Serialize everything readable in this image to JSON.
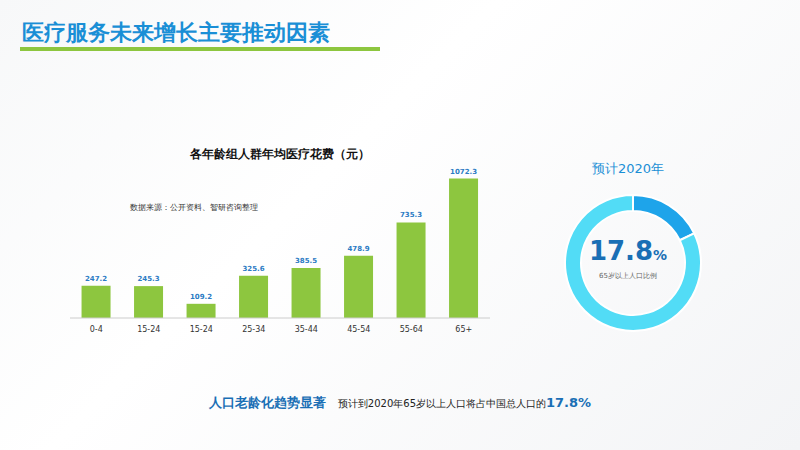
{
  "header": {
    "title": "医疗服务未来增长主要推动因素"
  },
  "chart_data": [
    {
      "type": "bar",
      "title": "各年龄组人群年均医疗花费（元）",
      "annotations": [
        "数据来源：公开资料、智研咨询整理"
      ],
      "categories": [
        "0-4",
        "15-24",
        "15-24",
        "25-34",
        "35-44",
        "45-54",
        "55-64",
        "65+"
      ],
      "values": [
        247.2,
        245.3,
        109.2,
        325.6,
        385.5,
        478.9,
        735.3,
        1072.3
      ],
      "color": "#8dc63f",
      "ylim": [
        0,
        1100
      ],
      "tick_labels": "x",
      "data_labels": true,
      "grid": false
    },
    {
      "type": "pie",
      "title": "预计2020年",
      "subtitle": "65岁以上人口比例",
      "values": [
        17.8,
        82.2
      ],
      "value_labels": [
        "17.8%",
        null
      ],
      "colors": [
        "#1ea4ea",
        "#52dcf6"
      ]
    }
  ],
  "footer": {
    "highlight": "人口老龄化趋势显著",
    "text": "预计到2020年65岁以上人口将占中国总人口的17.8%"
  }
}
